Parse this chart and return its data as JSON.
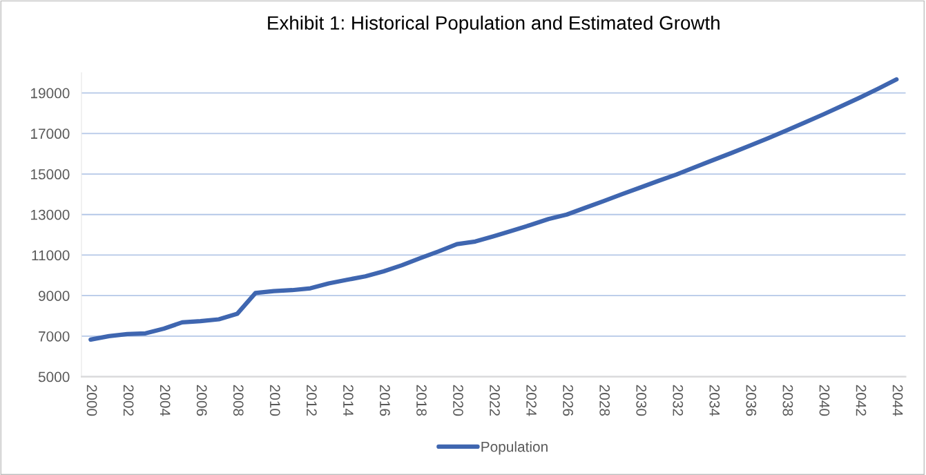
{
  "chart_data": {
    "type": "line",
    "title": "Exhibit 1: Historical Population and Estimated Growth",
    "categories": [
      "2000",
      null,
      "2002",
      null,
      "2004",
      null,
      "2006",
      null,
      "2008",
      null,
      "2010",
      null,
      "2012",
      null,
      "2014",
      null,
      "2016",
      null,
      "2018",
      null,
      "2020",
      null,
      "2022",
      null,
      "2024",
      null,
      "2026",
      null,
      "2028",
      null,
      "2030",
      null,
      "2032",
      null,
      "2034",
      null,
      "2036",
      null,
      "2038",
      null,
      "2040",
      null,
      "2042",
      null,
      "2044"
    ],
    "series": [
      {
        "name": "Population",
        "color": "#3f66b0",
        "values": [
          6830,
          7000,
          7100,
          7140,
          7370,
          7680,
          7740,
          7830,
          8100,
          9130,
          9220,
          9270,
          9360,
          9600,
          9780,
          9950,
          10200,
          10500,
          10850,
          11180,
          11540,
          11670,
          11930,
          12200,
          12480,
          12780,
          13000,
          13330,
          13660,
          14000,
          14330,
          14660,
          14980,
          15340,
          15690,
          16040,
          16400,
          16770,
          17150,
          17540,
          17940,
          18350,
          18770,
          19210,
          19670
        ]
      }
    ],
    "ylim": [
      5000,
      20000
    ],
    "yticks": [
      5000,
      7000,
      9000,
      11000,
      13000,
      15000,
      17000,
      19000
    ],
    "grid": "y",
    "legend": "bottom",
    "marker": "none",
    "line_style": "solid"
  }
}
